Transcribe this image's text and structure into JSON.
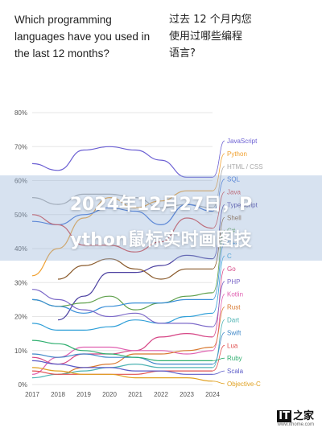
{
  "question_en": "Which programming\nlanguages have you used in\nthe last 12 months?",
  "question_zh": "过去 12 个月内您\n使用过哪些编程\n语言?",
  "overlay": {
    "line1": "2024年12月27日，P",
    "line2": "ython鼠标实时画图技"
  },
  "logo": {
    "mark": "IT",
    "name": "之家",
    "url": "www.ithome.com"
  },
  "chart_data": {
    "type": "line",
    "x": [
      2017,
      2018,
      2019,
      2020,
      2021,
      2022,
      2023,
      2024
    ],
    "ylim": [
      0,
      80
    ],
    "yticks": [
      "0%",
      "10%",
      "20%",
      "30%",
      "40%",
      "50%",
      "60%",
      "70%",
      "80%"
    ],
    "legend_position": "right",
    "series": [
      {
        "name": "JavaScript",
        "color": "#6b5fd3",
        "values": [
          65,
          63,
          69,
          70,
          69,
          66,
          61,
          61
        ]
      },
      {
        "name": "Python",
        "color": "#f0a030",
        "values": [
          32,
          40,
          49,
          55,
          52,
          54,
          57,
          57
        ]
      },
      {
        "name": "HTML / CSS",
        "color": "#a8a8a8",
        "values": [
          55,
          53,
          56,
          56,
          55,
          52,
          53,
          52
        ]
      },
      {
        "name": "SQL",
        "color": "#3b6fd6",
        "values": [
          48,
          47,
          50,
          52,
          51,
          47,
          53,
          51
        ]
      },
      {
        "name": "Java",
        "color": "#d64545",
        "values": [
          50,
          47,
          41,
          41,
          39,
          42,
          49,
          46
        ]
      },
      {
        "name": "TypeScript",
        "color": "#4a3fa0",
        "values": [
          null,
          19,
          26,
          33,
          33,
          35,
          38,
          37
        ]
      },
      {
        "name": "Shell",
        "color": "#8a5a2b",
        "values": [
          null,
          31,
          35,
          37,
          34,
          31,
          34,
          34
        ]
      },
      {
        "name": "C#",
        "color": "#5fa04b",
        "values": [
          25,
          23,
          24,
          26,
          22,
          24,
          26,
          27
        ]
      },
      {
        "name": "C++",
        "color": "#3a8fd8",
        "values": [
          25,
          23,
          21,
          23,
          24,
          24,
          25,
          25
        ]
      },
      {
        "name": "C",
        "color": "#2f9fd8",
        "values": [
          18,
          16,
          16,
          17,
          19,
          18,
          20,
          21
        ]
      },
      {
        "name": "Go",
        "color": "#d64585",
        "values": [
          8,
          6,
          9,
          9,
          10,
          14,
          15,
          14
        ]
      },
      {
        "name": "PHP",
        "color": "#7b68c8",
        "values": [
          28,
          25,
          22,
          20,
          21,
          18,
          18,
          17
        ]
      },
      {
        "name": "Kotlin",
        "color": "#e060b0",
        "values": [
          3,
          8,
          11,
          11,
          10,
          10,
          9,
          10
        ]
      },
      {
        "name": "Rust",
        "color": "#d8782f",
        "values": [
          null,
          3,
          5,
          6,
          9,
          9,
          10,
          11
        ]
      },
      {
        "name": "Dart",
        "color": "#4db3b3",
        "values": [
          2,
          3,
          4,
          5,
          6,
          5,
          5,
          5
        ]
      },
      {
        "name": "Swift",
        "color": "#3e87c8",
        "values": [
          9,
          8,
          9,
          8,
          8,
          6,
          6,
          6
        ]
      },
      {
        "name": "Lua",
        "color": "#e05050",
        "values": [
          4,
          3,
          3,
          3,
          3,
          4,
          4,
          4
        ]
      },
      {
        "name": "Ruby",
        "color": "#2faf6f",
        "values": [
          13,
          12,
          10,
          9,
          8,
          7,
          7,
          7
        ]
      },
      {
        "name": "Scala",
        "color": "#5c5cc8",
        "values": [
          7,
          6,
          5,
          5,
          4,
          4,
          3,
          3
        ]
      },
      {
        "name": "Objective-C",
        "color": "#e0a020",
        "values": [
          5,
          4,
          3,
          3,
          2,
          2,
          2,
          1
        ]
      }
    ],
    "legend_labels": [
      "JavaScript",
      "Python",
      "HTML / CSS",
      "SQL",
      "Java",
      "TypeScript",
      "Shell",
      "C#",
      "C++",
      "C",
      "Go",
      "PHP",
      "Kotlin",
      "Rust",
      "Dart",
      "Swift",
      "Lua",
      "Ruby",
      "Scala",
      "Objective-C"
    ]
  }
}
